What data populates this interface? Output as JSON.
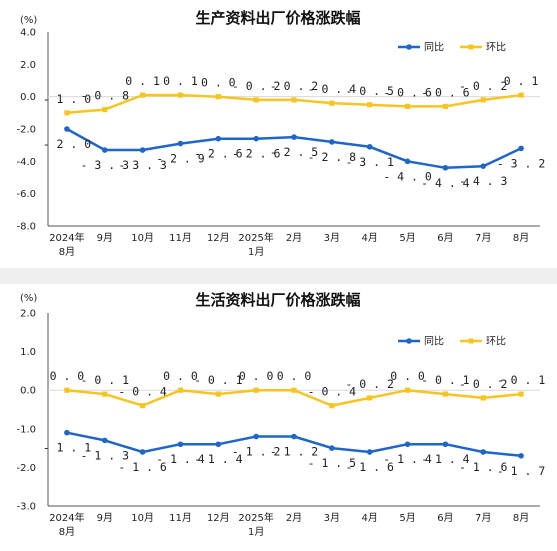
{
  "colors": {
    "yoy": "#1f66c8",
    "mom": "#f6c523"
  },
  "chart_data": [
    {
      "type": "line",
      "title": "生产资料出厂价格涨跌幅",
      "unit_label": "(%)",
      "categories": [
        "2024年\n8月",
        "9月",
        "10月",
        "11月",
        "12月",
        "2025年\n1月",
        "2月",
        "3月",
        "4月",
        "5月",
        "6月",
        "7月",
        "8月"
      ],
      "ylim": [
        -8.0,
        4.0
      ],
      "yticks": [
        "4.0",
        "2.0",
        "0.0",
        "-2.0",
        "-4.0",
        "-6.0",
        "-8.0"
      ],
      "legend_position": "top-right",
      "series": [
        {
          "name": "同比",
          "color": "#1f66c8",
          "values": [
            -2.0,
            -3.3,
            -3.3,
            -2.9,
            -2.6,
            -2.6,
            -2.5,
            -2.8,
            -3.1,
            -4.0,
            -4.4,
            -4.3,
            -3.2
          ]
        },
        {
          "name": "环比",
          "color": "#f6c523",
          "values": [
            -1.0,
            -0.8,
            0.1,
            0.1,
            0.0,
            -0.2,
            -0.2,
            -0.4,
            -0.5,
            -0.6,
            -0.6,
            -0.2,
            0.1
          ]
        }
      ]
    },
    {
      "type": "line",
      "title": "生活资料出厂价格涨跌幅",
      "unit_label": "(%)",
      "categories": [
        "2024年\n8月",
        "9月",
        "10月",
        "11月",
        "12月",
        "2025年\n1月",
        "2月",
        "3月",
        "4月",
        "5月",
        "6月",
        "7月",
        "8月"
      ],
      "ylim": [
        -3.0,
        2.0
      ],
      "yticks": [
        "2.0",
        "1.0",
        "0.0",
        "-1.0",
        "-2.0",
        "-3.0"
      ],
      "legend_position": "top-right",
      "series": [
        {
          "name": "同比",
          "color": "#1f66c8",
          "values": [
            -1.1,
            -1.3,
            -1.6,
            -1.4,
            -1.4,
            -1.2,
            -1.2,
            -1.5,
            -1.6,
            -1.4,
            -1.4,
            -1.6,
            -1.7
          ]
        },
        {
          "name": "环比",
          "color": "#f6c523",
          "values": [
            0.0,
            -0.1,
            -0.4,
            0.0,
            -0.1,
            0.0,
            0.0,
            -0.4,
            -0.2,
            0.0,
            -0.1,
            -0.2,
            -0.1
          ]
        }
      ]
    }
  ]
}
